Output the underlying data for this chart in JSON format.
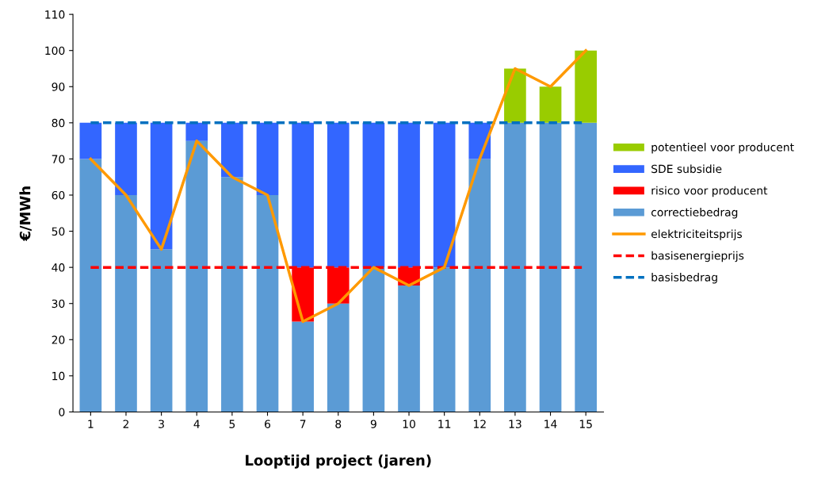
{
  "chart_data": {
    "type": "bar",
    "stacked": true,
    "xlabel": "Looptijd project (jaren)",
    "ylabel": "€/MWh",
    "categories": [
      "1",
      "2",
      "3",
      "4",
      "5",
      "6",
      "7",
      "8",
      "9",
      "10",
      "11",
      "12",
      "13",
      "14",
      "15"
    ],
    "series": [
      {
        "name": "correctiebedrag",
        "color": "#5b9bd5",
        "values": [
          70,
          60,
          45,
          75,
          65,
          60,
          25,
          30,
          40,
          35,
          40,
          70,
          80,
          80,
          80
        ]
      },
      {
        "name": "risico voor producent",
        "color": "#ff0000",
        "values": [
          0,
          0,
          0,
          0,
          0,
          0,
          15,
          10,
          0,
          5,
          0,
          0,
          0,
          0,
          0
        ]
      },
      {
        "name": "SDE subsidie",
        "color": "#3366ff",
        "values": [
          10,
          20,
          35,
          5,
          15,
          20,
          40,
          40,
          40,
          40,
          40,
          10,
          0,
          0,
          0
        ]
      },
      {
        "name": "potentieel voor producent",
        "color": "#99cc00",
        "values": [
          0,
          0,
          0,
          0,
          0,
          0,
          0,
          0,
          0,
          0,
          0,
          0,
          15,
          10,
          20
        ]
      },
      {
        "name": "elektriciteitsprijs",
        "color": "#ff9900",
        "type": "line",
        "line_style": "solid",
        "values": [
          70,
          60,
          45,
          75,
          65,
          60,
          25,
          30,
          40,
          35,
          40,
          70,
          95,
          90,
          100
        ]
      }
    ],
    "ref_lines": [
      {
        "axis": "y",
        "value": 40,
        "label": "basisenergieprijs",
        "color": "#ff0000",
        "line_style": "dashed"
      },
      {
        "axis": "y",
        "value": 80,
        "label": "basisbedrag",
        "color": "#0070c0",
        "line_style": "dashed"
      }
    ],
    "ylim": [
      0,
      110
    ],
    "yticks": [
      0,
      10,
      20,
      30,
      40,
      50,
      60,
      70,
      80,
      90,
      100,
      110
    ],
    "grid": false,
    "legend": "right"
  }
}
